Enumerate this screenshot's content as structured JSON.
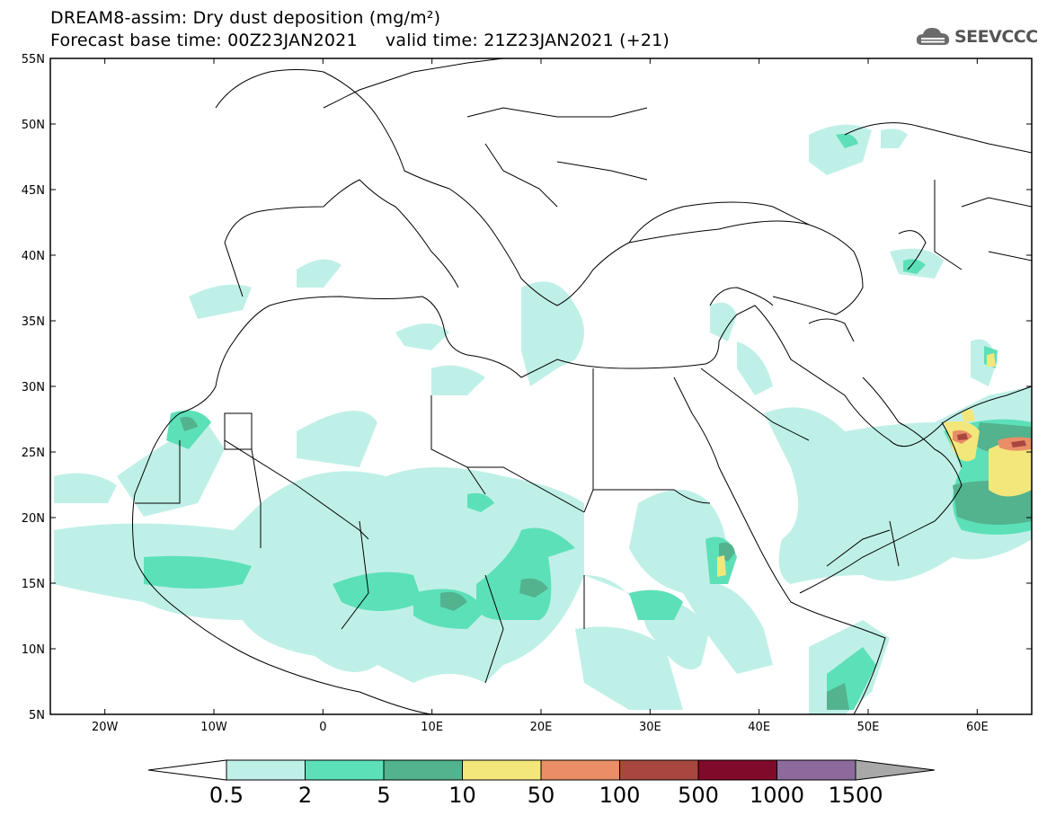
{
  "header": {
    "title_line_1": "DREAM8-assim: Dry dust deposition (mg/m²)",
    "title_line_2": "Forecast base time: 00Z23JAN2021     valid time: 21Z23JAN2021 (+21)"
  },
  "logo": {
    "text": "SEEVCCC"
  },
  "map": {
    "lat_labels": [
      "55N",
      "50N",
      "45N",
      "40N",
      "35N",
      "30N",
      "25N",
      "20N",
      "15N",
      "10N",
      "5N"
    ],
    "lon_labels": [
      "20W",
      "10W",
      "0",
      "10E",
      "20E",
      "30E",
      "40E",
      "50E",
      "60E"
    ]
  },
  "colorbar": {
    "labels": [
      "0.5",
      "2",
      "5",
      "10",
      "50",
      "100",
      "500",
      "1000",
      "1500"
    ],
    "colors": [
      "#bff0e8",
      "#5ce0b8",
      "#52b38e",
      "#f3e77c",
      "#e98e67",
      "#a8473f",
      "#800a2a",
      "#8c6b9c"
    ],
    "under_color": "#ffffff",
    "over_color": "#a8a8a8"
  }
}
